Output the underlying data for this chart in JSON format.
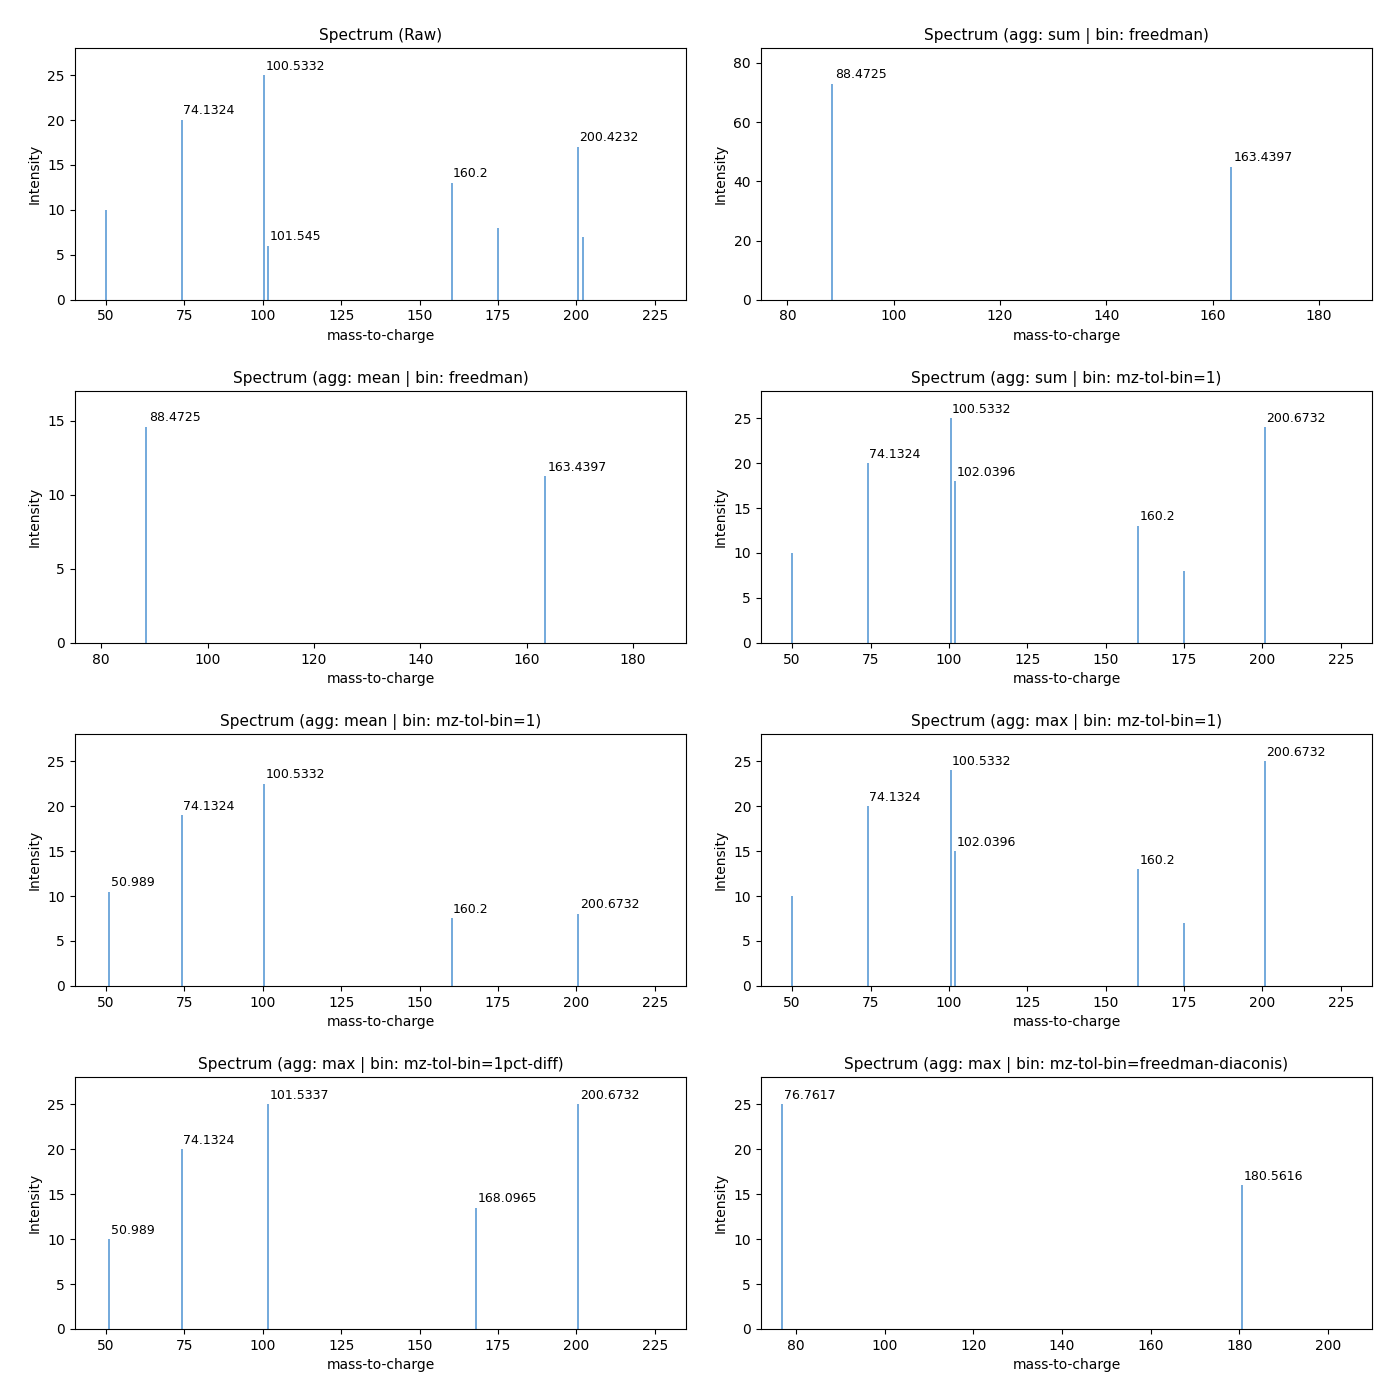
{
  "subplots": [
    {
      "title": "Spectrum (Raw)",
      "mz": [
        50.0,
        74.1324,
        100.5332,
        101.545,
        160.2,
        175.0,
        200.4232,
        202.0
      ],
      "intensity": [
        10.0,
        20.0,
        25.0,
        6.0,
        13.0,
        8.0,
        17.0,
        7.0
      ],
      "labels": [
        "",
        "74.1324",
        "100.5332",
        "101.545",
        "160.2",
        "",
        "200.4232",
        ""
      ],
      "xlabel": "mass-to-charge",
      "ylabel": "Intensity",
      "ylim": [
        0,
        28
      ],
      "xlim": [
        40,
        235
      ],
      "yticks": [
        0,
        5,
        10,
        15,
        20,
        25
      ]
    },
    {
      "title": "Spectrum (agg: sum | bin: freedman)",
      "mz": [
        88.4725,
        163.4397
      ],
      "intensity": [
        73.0,
        45.0
      ],
      "labels": [
        "88.4725",
        "163.4397"
      ],
      "xlabel": "mass-to-charge",
      "ylabel": "Intensity",
      "ylim": [
        0,
        85
      ],
      "xlim": [
        75,
        190
      ],
      "yticks": [
        0,
        20,
        40,
        60,
        80
      ]
    },
    {
      "title": "Spectrum (agg: mean | bin: freedman)",
      "mz": [
        88.4725,
        163.4397
      ],
      "intensity": [
        14.6,
        11.25
      ],
      "labels": [
        "88.4725",
        "163.4397"
      ],
      "xlabel": "mass-to-charge",
      "ylabel": "Intensity",
      "ylim": [
        0,
        17
      ],
      "xlim": [
        75,
        190
      ],
      "yticks": [
        0,
        5,
        10,
        15
      ]
    },
    {
      "title": "Spectrum (agg: sum | bin: mz-tol-bin=1)",
      "mz": [
        50.0,
        74.1324,
        100.5332,
        102.0396,
        160.2,
        175.0,
        200.6732
      ],
      "intensity": [
        10.0,
        20.0,
        25.0,
        18.0,
        13.0,
        8.0,
        24.0
      ],
      "labels": [
        "",
        "74.1324",
        "100.5332",
        "102.0396",
        "160.2",
        "",
        "200.6732"
      ],
      "xlabel": "mass-to-charge",
      "ylabel": "Intensity",
      "ylim": [
        0,
        28
      ],
      "xlim": [
        40,
        235
      ],
      "yticks": [
        0,
        5,
        10,
        15,
        20,
        25
      ]
    },
    {
      "title": "Spectrum (agg: mean | bin: mz-tol-bin=1)",
      "mz": [
        50.989,
        74.1324,
        100.5332,
        160.2,
        200.6732
      ],
      "intensity": [
        10.5,
        19.0,
        22.5,
        7.5,
        8.0
      ],
      "labels": [
        "50.989",
        "74.1324",
        "100.5332",
        "160.2",
        "200.6732"
      ],
      "xlabel": "mass-to-charge",
      "ylabel": "Intensity",
      "ylim": [
        0,
        28
      ],
      "xlim": [
        40,
        235
      ],
      "yticks": [
        0,
        5,
        10,
        15,
        20,
        25
      ]
    },
    {
      "title": "Spectrum (agg: max | bin: mz-tol-bin=1)",
      "mz": [
        50.0,
        74.1324,
        100.5332,
        102.0396,
        160.2,
        175.0,
        200.6732
      ],
      "intensity": [
        10.0,
        20.0,
        24.0,
        15.0,
        13.0,
        7.0,
        25.0
      ],
      "labels": [
        "",
        "74.1324",
        "100.5332",
        "102.0396",
        "160.2",
        "",
        "200.6732"
      ],
      "xlabel": "mass-to-charge",
      "ylabel": "Intensity",
      "ylim": [
        0,
        28
      ],
      "xlim": [
        40,
        235
      ],
      "yticks": [
        0,
        5,
        10,
        15,
        20,
        25
      ]
    },
    {
      "title": "Spectrum (agg: max | bin: mz-tol-bin=1pct-diff)",
      "mz": [
        50.989,
        74.1324,
        101.5337,
        168.0965,
        200.6732
      ],
      "intensity": [
        10.0,
        20.0,
        25.0,
        13.5,
        25.0
      ],
      "labels": [
        "50.989",
        "74.1324",
        "101.5337",
        "168.0965",
        "200.6732"
      ],
      "xlabel": "mass-to-charge",
      "ylabel": "Intensity",
      "ylim": [
        0,
        28
      ],
      "xlim": [
        40,
        235
      ],
      "yticks": [
        0,
        5,
        10,
        15,
        20,
        25
      ]
    },
    {
      "title": "Spectrum (agg: max | bin: mz-tol-bin=freedman-diaconis)",
      "mz": [
        76.7617,
        180.5616
      ],
      "intensity": [
        25.0,
        16.0
      ],
      "labels": [
        "76.7617",
        "180.5616"
      ],
      "xlabel": "mass-to-charge",
      "ylabel": "Intensity",
      "ylim": [
        0,
        28
      ],
      "xlim": [
        72,
        210
      ],
      "yticks": [
        0,
        5,
        10,
        15,
        20,
        25
      ]
    }
  ],
  "line_color": "#5B9BD5",
  "annotation_fontsize": 9,
  "figsize": [
    14,
    14
  ],
  "dpi": 100
}
